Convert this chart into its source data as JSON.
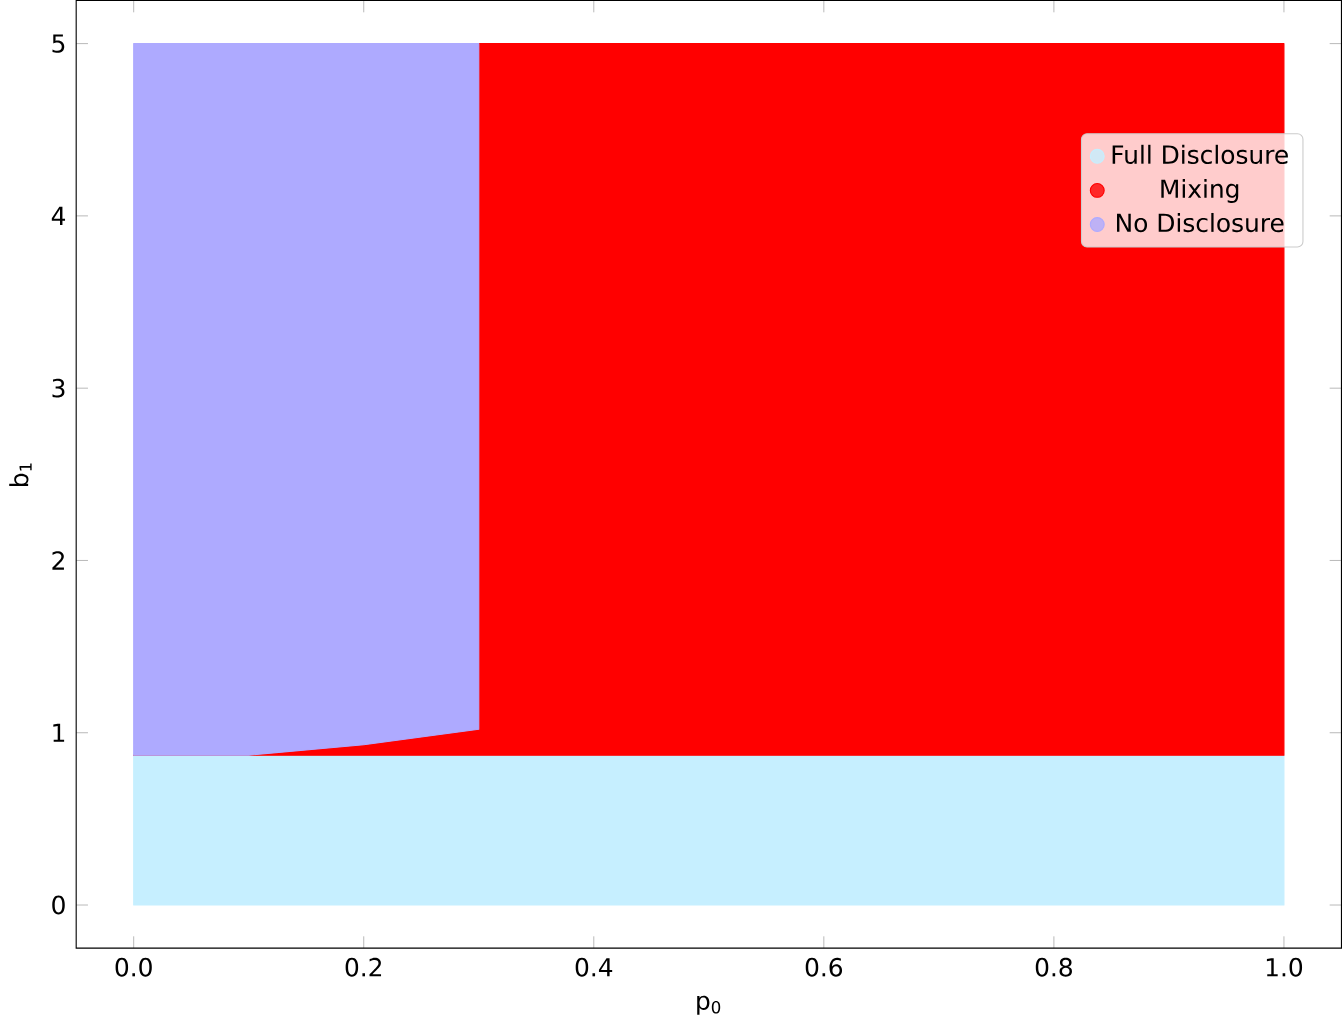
{
  "chart_data": {
    "type": "area",
    "stacked": true,
    "xlabel": "p$_{0}$",
    "ylabel": "b$_{1}$",
    "x": [
      0,
      0.1,
      0.2,
      0.3,
      0.3,
      1.0
    ],
    "series": [
      {
        "name": "Full Disclosure",
        "color": "#c6efff",
        "values": [
          0.87,
          0.87,
          0.87,
          0.87,
          0.87,
          0.87
        ]
      },
      {
        "name": "Mixing",
        "color": "#ff0000",
        "values": [
          0,
          0,
          0.06,
          0.15,
          4.13,
          4.13
        ]
      },
      {
        "name": "No Disclosure",
        "color": "#aeaaff",
        "x": [
          0,
          0.1,
          0.2,
          0.3
        ],
        "values": [
          4.13,
          4.13,
          4.07,
          3.98
        ]
      }
    ],
    "xlim": [
      -0.05,
      1.05
    ],
    "ylim": [
      -0.25,
      5.25
    ],
    "xticks": [
      {
        "value": 0,
        "label": "0.0"
      },
      0.2,
      0.4,
      0.6,
      0.8,
      {
        "value": 1,
        "label": "1.0"
      }
    ],
    "yticks": [
      0,
      1,
      2,
      3,
      4,
      5
    ],
    "legend": "top right",
    "grid": false
  }
}
